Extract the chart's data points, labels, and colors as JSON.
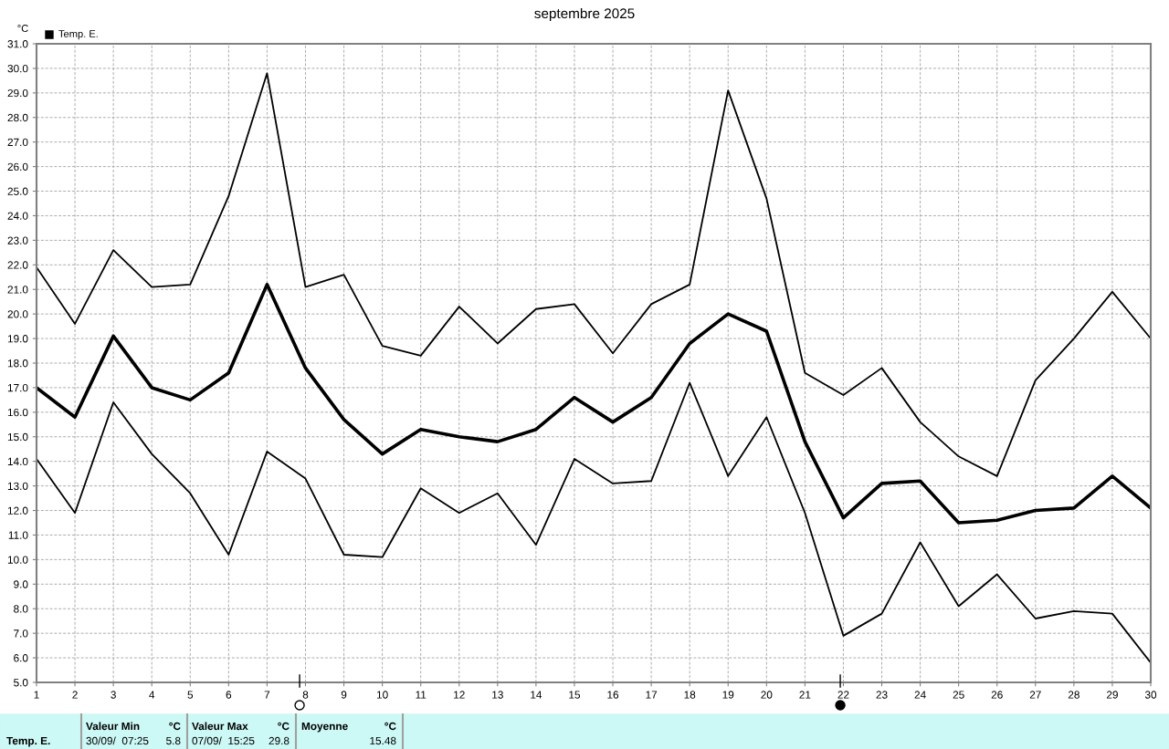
{
  "chart_data": {
    "type": "line",
    "title": "septembre 2025",
    "ylabel": "°C",
    "x": [
      1,
      2,
      3,
      4,
      5,
      6,
      7,
      8,
      9,
      10,
      11,
      12,
      13,
      14,
      15,
      16,
      17,
      18,
      19,
      20,
      21,
      22,
      23,
      24,
      25,
      26,
      27,
      28,
      29,
      30
    ],
    "series": [
      {
        "color": "#000000",
        "values": [
          21.9,
          19.6,
          22.6,
          21.1,
          21.2,
          24.8,
          29.8,
          21.1,
          21.6,
          18.7,
          18.3,
          20.3,
          18.8,
          20.2,
          20.4,
          18.4,
          20.4,
          21.2,
          29.1,
          24.7,
          17.6,
          16.7,
          17.8,
          15.6,
          14.2,
          13.4,
          17.3,
          19.0,
          20.9,
          19.0
        ]
      },
      {
        "name": "Temp. E.",
        "color": "#000000",
        "values": [
          17.0,
          15.8,
          19.1,
          17.0,
          16.5,
          17.6,
          21.2,
          17.8,
          15.7,
          14.3,
          15.3,
          15.0,
          14.8,
          15.3,
          16.6,
          15.6,
          16.6,
          18.8,
          20.0,
          19.3,
          14.8,
          11.7,
          13.1,
          13.2,
          11.5,
          11.6,
          12.0,
          12.1,
          13.4,
          12.1
        ]
      },
      {
        "color": "#000000",
        "values": [
          14.1,
          11.9,
          16.4,
          14.3,
          12.7,
          10.2,
          14.4,
          13.3,
          10.2,
          10.1,
          12.9,
          11.9,
          12.7,
          10.6,
          14.1,
          13.1,
          13.2,
          17.2,
          13.4,
          15.8,
          11.9,
          6.9,
          7.8,
          10.7,
          8.1,
          9.4,
          7.6,
          7.9,
          7.8,
          5.8
        ]
      }
    ],
    "xlim": [
      1,
      30
    ],
    "xticks": [
      1,
      2,
      3,
      4,
      5,
      6,
      7,
      8,
      9,
      10,
      11,
      12,
      13,
      14,
      15,
      16,
      17,
      18,
      19,
      20,
      21,
      22,
      23,
      24,
      25,
      26,
      27,
      28,
      29,
      30
    ],
    "ylim": [
      5,
      31
    ],
    "yticks": [
      {
        "value": 5,
        "label": "5.0"
      },
      {
        "value": 6,
        "label": "6.0"
      },
      {
        "value": 7,
        "label": "7.0"
      },
      {
        "value": 8,
        "label": "8.0"
      },
      {
        "value": 9,
        "label": "9.0"
      },
      {
        "value": 10,
        "label": "10.0"
      },
      {
        "value": 11,
        "label": "11.0"
      },
      {
        "value": 12,
        "label": "12.0"
      },
      {
        "value": 13,
        "label": "13.0"
      },
      {
        "value": 14,
        "label": "14.0"
      },
      {
        "value": 15,
        "label": "15.0"
      },
      {
        "value": 16,
        "label": "16.0"
      },
      {
        "value": 17,
        "label": "17.0"
      },
      {
        "value": 18,
        "label": "18.0"
      },
      {
        "value": 19,
        "label": "19.0"
      },
      {
        "value": 20,
        "label": "20.0"
      },
      {
        "value": 21,
        "label": "21.0"
      },
      {
        "value": 22,
        "label": "22.0"
      },
      {
        "value": 23,
        "label": "23.0"
      },
      {
        "value": 24,
        "label": "24.0"
      },
      {
        "value": 25,
        "label": "25.0"
      },
      {
        "value": 26,
        "label": "26.0"
      },
      {
        "value": 27,
        "label": "27.0"
      },
      {
        "value": 28,
        "label": "28.0"
      },
      {
        "value": 29,
        "label": "29.0"
      },
      {
        "value": 30,
        "label": "30.0"
      },
      {
        "value": 31,
        "label": "31.0"
      }
    ],
    "grid": true,
    "legend": "top left",
    "marker": "none",
    "line_style": "solid",
    "annotations": [
      "Temp. E.",
      "Valeur Min",
      "°C",
      "30/09/  07:25",
      "5.8",
      "Valeur Max",
      "°C",
      "07/09/  15:25",
      "29.8",
      "Moyenne",
      "°C",
      "15.48"
    ]
  }
}
